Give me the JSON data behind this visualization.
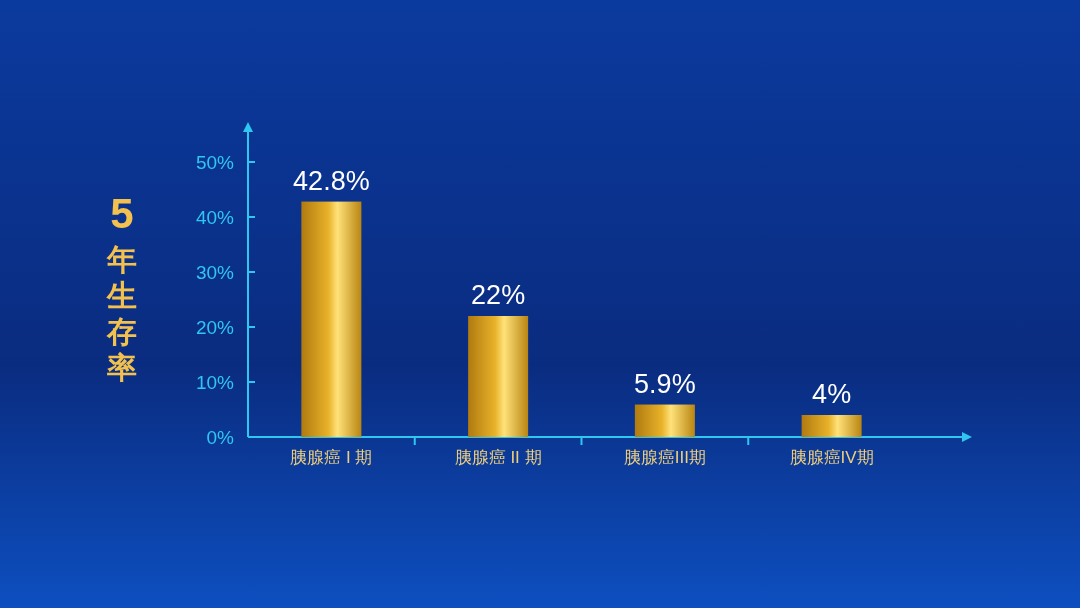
{
  "chart_data": {
    "type": "bar",
    "ylabel": "5年生存率",
    "categories": [
      "胰腺癌 I 期",
      "胰腺癌 II 期",
      "胰腺癌III期",
      "胰腺癌IV期"
    ],
    "values": [
      42.8,
      22,
      5.9,
      4
    ],
    "value_labels": [
      "42.8%",
      "22%",
      "5.9%",
      "4%"
    ],
    "color": "#e8b22a",
    "ylim": [
      0,
      50
    ],
    "yticks": [
      {
        "value": 0,
        "label": "0%"
      },
      {
        "value": 10,
        "label": "10%"
      },
      {
        "value": 20,
        "label": "20%"
      },
      {
        "value": 30,
        "label": "30%"
      },
      {
        "value": 40,
        "label": "40%"
      },
      {
        "value": 50,
        "label": "50%"
      }
    ],
    "grid": false
  }
}
